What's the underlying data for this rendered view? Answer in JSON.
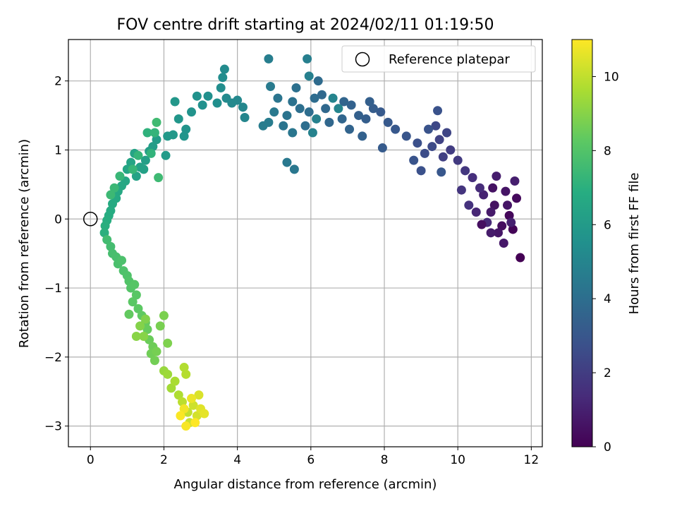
{
  "chart_data": {
    "type": "scatter",
    "title": "FOV centre drift starting at 2024/02/11 01:19:50",
    "xlabel": "Angular distance from reference (arcmin)",
    "ylabel": "Rotation from reference (arcmin)",
    "xlim": [
      -0.6,
      12.3
    ],
    "ylim": [
      -3.3,
      2.6
    ],
    "xticks": [
      0,
      2,
      4,
      6,
      8,
      10,
      12
    ],
    "xtick_labels": [
      "0",
      "2",
      "4",
      "6",
      "8",
      "10",
      "12"
    ],
    "yticks": [
      -3,
      -2,
      -1,
      0,
      1,
      2
    ],
    "ytick_labels": [
      "−3",
      "−2",
      "−1",
      "0",
      "1",
      "2"
    ],
    "grid": true,
    "legend_position": "upper-right",
    "legend": [
      {
        "label": "Reference platepar",
        "marker": "open-circle"
      }
    ],
    "reference_point": {
      "x": 0,
      "y": 0
    },
    "colorbar": {
      "label": "Hours from first FF file",
      "range": [
        0,
        11
      ],
      "ticks": [
        0,
        2,
        4,
        6,
        8,
        10
      ],
      "tick_labels": [
        "0",
        "2",
        "4",
        "6",
        "8",
        "10"
      ],
      "colormap": "viridis"
    },
    "points": [
      [
        11.7,
        -0.56,
        0
      ],
      [
        11.5,
        -0.15,
        0.1
      ],
      [
        11.4,
        0.05,
        0.2
      ],
      [
        11.6,
        0.3,
        0.3
      ],
      [
        11.2,
        -0.1,
        0.4
      ],
      [
        11.0,
        0.2,
        0.5
      ],
      [
        11.3,
        0.4,
        0.6
      ],
      [
        11.1,
        -0.2,
        0.7
      ],
      [
        10.9,
        0.1,
        0.8
      ],
      [
        11.05,
        0.62,
        0.9
      ],
      [
        11.55,
        0.55,
        0.95
      ],
      [
        11.45,
        -0.05,
        1.0
      ],
      [
        10.7,
        0.35,
        1.1
      ],
      [
        10.5,
        0.1,
        1.2
      ],
      [
        10.8,
        -0.05,
        1.3
      ],
      [
        10.6,
        0.45,
        1.4
      ],
      [
        10.4,
        0.6,
        1.5
      ],
      [
        10.3,
        0.2,
        1.6
      ],
      [
        10.1,
        0.42,
        1.7
      ],
      [
        10.2,
        0.7,
        1.8
      ],
      [
        10.0,
        0.85,
        1.9
      ],
      [
        9.8,
        1.0,
        2.0
      ],
      [
        9.6,
        0.9,
        2.1
      ],
      [
        9.5,
        1.15,
        2.2
      ],
      [
        9.7,
        1.25,
        2.3
      ],
      [
        9.4,
        1.35,
        2.4
      ],
      [
        9.3,
        1.05,
        2.5
      ],
      [
        9.1,
        0.95,
        2.6
      ],
      [
        8.9,
        1.1,
        2.7
      ],
      [
        9.0,
        0.7,
        2.75
      ],
      [
        9.45,
        1.57,
        2.8
      ],
      [
        9.2,
        1.3,
        2.85
      ],
      [
        8.8,
        0.85,
        2.9
      ],
      [
        8.6,
        1.2,
        2.95
      ],
      [
        9.55,
        0.68,
        3.0
      ],
      [
        10.9,
        -0.2,
        0.85
      ],
      [
        11.25,
        -0.35,
        0.75
      ],
      [
        11.35,
        0.2,
        0.65
      ],
      [
        10.95,
        0.45,
        0.55
      ],
      [
        10.65,
        -0.08,
        0.45
      ],
      [
        8.3,
        1.3,
        3.05
      ],
      [
        8.1,
        1.4,
        3.1
      ],
      [
        7.9,
        1.55,
        3.15
      ],
      [
        7.95,
        1.03,
        3.2
      ],
      [
        7.7,
        1.6,
        3.25
      ],
      [
        7.5,
        1.45,
        3.3
      ],
      [
        7.6,
        1.7,
        3.35
      ],
      [
        7.3,
        1.5,
        3.4
      ],
      [
        7.4,
        1.2,
        3.45
      ],
      [
        7.1,
        1.65,
        3.5
      ],
      [
        7.05,
        1.3,
        3.55
      ],
      [
        6.9,
        1.7,
        3.6
      ],
      [
        6.85,
        1.45,
        3.65
      ],
      [
        6.5,
        1.4,
        3.7
      ],
      [
        6.4,
        1.6,
        3.75
      ],
      [
        6.3,
        1.8,
        3.8
      ],
      [
        6.2,
        2.0,
        3.85
      ],
      [
        6.1,
        1.75,
        3.9
      ],
      [
        5.95,
        1.55,
        3.95
      ],
      [
        5.85,
        1.35,
        4.0
      ],
      [
        5.7,
        1.6,
        4.05
      ],
      [
        5.6,
        1.9,
        4.1
      ],
      [
        5.5,
        1.7,
        4.15
      ],
      [
        5.35,
        1.5,
        4.2
      ],
      [
        5.25,
        1.35,
        4.25
      ],
      [
        5.1,
        1.75,
        4.3
      ],
      [
        5.5,
        1.25,
        4.35
      ],
      [
        5.55,
        0.72,
        4.4
      ],
      [
        5.35,
        0.82,
        4.45
      ],
      [
        5.0,
        1.55,
        4.5
      ],
      [
        4.9,
        1.92,
        4.55
      ],
      [
        4.85,
        1.4,
        4.6
      ],
      [
        4.7,
        1.35,
        4.65
      ],
      [
        4.85,
        2.32,
        4.7
      ],
      [
        5.9,
        2.32,
        4.75
      ],
      [
        5.95,
        2.07,
        4.8
      ],
      [
        6.15,
        1.45,
        4.85
      ],
      [
        6.05,
        1.25,
        4.9
      ],
      [
        6.6,
        1.75,
        4.95
      ],
      [
        6.75,
        1.6,
        5.0
      ],
      [
        4.2,
        1.47,
        5.05
      ],
      [
        4.15,
        1.62,
        5.1
      ],
      [
        4.0,
        1.72,
        5.15
      ],
      [
        3.85,
        1.68,
        5.2
      ],
      [
        3.7,
        1.75,
        5.25
      ],
      [
        3.65,
        2.17,
        5.3
      ],
      [
        3.6,
        2.05,
        5.35
      ],
      [
        3.55,
        1.9,
        5.4
      ],
      [
        3.45,
        1.68,
        5.45
      ],
      [
        3.2,
        1.78,
        5.5
      ],
      [
        3.05,
        1.65,
        5.55
      ],
      [
        2.9,
        1.78,
        5.6
      ],
      [
        2.75,
        1.55,
        5.65
      ],
      [
        2.6,
        1.3,
        5.7
      ],
      [
        2.55,
        1.2,
        5.75
      ],
      [
        2.4,
        1.45,
        5.8
      ],
      [
        2.3,
        1.7,
        5.85
      ],
      [
        2.25,
        1.22,
        5.9
      ],
      [
        2.1,
        1.2,
        5.95
      ],
      [
        2.05,
        0.92,
        6.0
      ],
      [
        1.8,
        1.15,
        6.05
      ],
      [
        1.7,
        1.05,
        6.1
      ],
      [
        1.6,
        0.98,
        6.15
      ],
      [
        1.5,
        0.85,
        6.2
      ],
      [
        1.45,
        0.72,
        6.25
      ],
      [
        1.35,
        0.75,
        6.3
      ],
      [
        1.25,
        0.62,
        6.35
      ],
      [
        1.2,
        0.95,
        6.4
      ],
      [
        1.1,
        0.82,
        6.45
      ],
      [
        1.0,
        0.72,
        6.5
      ],
      [
        0.95,
        0.55,
        6.55
      ],
      [
        0.85,
        0.48,
        6.6
      ],
      [
        0.75,
        0.4,
        6.65
      ],
      [
        0.7,
        0.3,
        6.7
      ],
      [
        0.6,
        0.22,
        6.75
      ],
      [
        0.55,
        0.12,
        6.8
      ],
      [
        0.5,
        0.05,
        6.85
      ],
      [
        0.45,
        -0.02,
        6.9
      ],
      [
        0.4,
        -0.1,
        6.95
      ],
      [
        0.38,
        -0.2,
        7.0
      ],
      [
        1.55,
        1.25,
        7.1
      ],
      [
        1.65,
        0.95,
        7.15
      ],
      [
        1.75,
        1.25,
        7.2
      ],
      [
        1.3,
        0.92,
        7.25
      ],
      [
        1.15,
        0.72,
        7.3
      ],
      [
        0.8,
        0.62,
        7.35
      ],
      [
        0.65,
        0.45,
        7.4
      ],
      [
        0.55,
        0.35,
        7.45
      ],
      [
        1.85,
        0.6,
        7.5
      ],
      [
        1.8,
        1.4,
        7.55
      ],
      [
        0.45,
        -0.3,
        7.6
      ],
      [
        0.55,
        -0.4,
        7.65
      ],
      [
        0.6,
        -0.5,
        7.7
      ],
      [
        0.7,
        -0.55,
        7.75
      ],
      [
        0.75,
        -0.65,
        7.8
      ],
      [
        0.85,
        -0.6,
        7.85
      ],
      [
        0.9,
        -0.75,
        7.9
      ],
      [
        1.0,
        -0.82,
        7.95
      ],
      [
        1.05,
        -0.9,
        8.0
      ],
      [
        1.1,
        -1.0,
        8.05
      ],
      [
        1.2,
        -0.95,
        8.1
      ],
      [
        1.25,
        -1.1,
        8.15
      ],
      [
        1.15,
        -1.2,
        8.2
      ],
      [
        1.3,
        -1.3,
        8.25
      ],
      [
        1.4,
        -1.4,
        8.3
      ],
      [
        1.05,
        -1.38,
        8.35
      ],
      [
        1.5,
        -1.5,
        8.4
      ],
      [
        1.55,
        -1.6,
        8.45
      ],
      [
        1.6,
        -1.75,
        8.5
      ],
      [
        1.7,
        -1.85,
        8.55
      ],
      [
        1.65,
        -1.95,
        8.6
      ],
      [
        1.75,
        -2.05,
        8.65
      ],
      [
        1.8,
        -1.92,
        8.7
      ],
      [
        1.9,
        -1.55,
        8.75
      ],
      [
        2.0,
        -1.4,
        8.8
      ],
      [
        2.1,
        -1.8,
        8.85
      ],
      [
        1.5,
        -1.45,
        8.9
      ],
      [
        1.35,
        -1.55,
        8.95
      ],
      [
        1.45,
        -1.7,
        9.0
      ],
      [
        1.25,
        -1.7,
        9.05
      ],
      [
        2.0,
        -2.2,
        9.3
      ],
      [
        2.1,
        -2.25,
        9.4
      ],
      [
        2.2,
        -2.45,
        9.5
      ],
      [
        2.3,
        -2.35,
        9.6
      ],
      [
        2.4,
        -2.55,
        9.7
      ],
      [
        2.55,
        -2.15,
        9.75
      ],
      [
        2.6,
        -2.25,
        9.8
      ],
      [
        2.5,
        -2.65,
        9.9
      ],
      [
        2.65,
        -2.8,
        10.0
      ],
      [
        2.7,
        -2.95,
        10.1
      ],
      [
        2.8,
        -2.7,
        10.2
      ],
      [
        2.9,
        -2.85,
        10.3
      ],
      [
        2.95,
        -2.55,
        10.4
      ],
      [
        3.0,
        -2.75,
        10.5
      ],
      [
        3.1,
        -2.82,
        10.6
      ],
      [
        2.75,
        -2.6,
        10.7
      ],
      [
        2.55,
        -2.75,
        10.8
      ],
      [
        2.6,
        -3.0,
        10.9
      ],
      [
        2.85,
        -2.95,
        11.0
      ],
      [
        2.45,
        -2.85,
        10.95
      ]
    ]
  }
}
